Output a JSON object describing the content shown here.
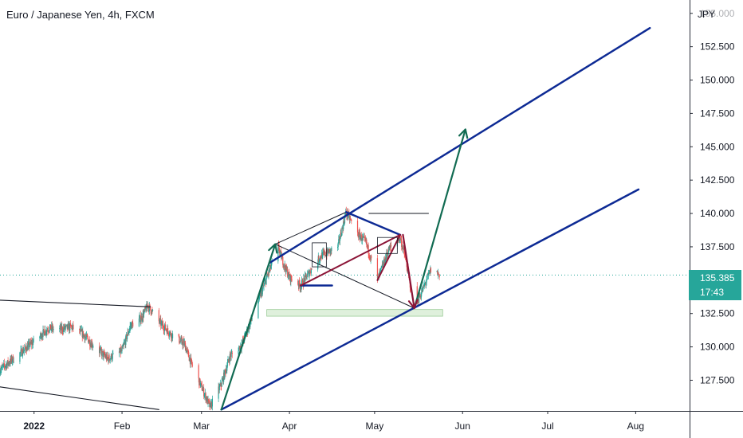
{
  "header": {
    "title": "Euro / Japanese Yen, 4h, FXCM"
  },
  "axis": {
    "unit": "JPY"
  },
  "last_price": {
    "price": "135.385",
    "countdown": "17:43"
  },
  "colors": {
    "channel": "#0d2a94",
    "arrow_green": "#116b52",
    "arrow_red": "#8b1436",
    "black_line": "#131722",
    "price_tag": "#26a69a",
    "zone_fill": "#dff0dc",
    "zone_stroke": "#9ccc98"
  },
  "chart_data": {
    "type": "candlestick",
    "title": "Euro / Japanese Yen, 4h, FXCM",
    "x_ticks": [
      "2022",
      "Feb",
      "Mar",
      "Apr",
      "May",
      "Jun",
      "Jul",
      "Aug"
    ],
    "y_ticks": [
      "155.000",
      "152.500",
      "150.000",
      "147.500",
      "145.000",
      "142.500",
      "140.000",
      "137.500",
      "135.000",
      "132.500",
      "130.000",
      "127.500"
    ],
    "ylim": [
      125.2,
      156.0
    ],
    "xlim": [
      "2021-12-20",
      "2022-08-20"
    ],
    "last_price": 135.385,
    "price_path": [
      [
        "2021-12-20",
        128.3
      ],
      [
        "2021-12-27",
        129.5
      ],
      [
        "2022-01-03",
        130.8
      ],
      [
        "2022-01-06",
        131.4
      ],
      [
        "2022-01-10",
        131.3
      ],
      [
        "2022-01-14",
        131.5
      ],
      [
        "2022-01-18",
        131.0
      ],
      [
        "2022-01-21",
        130.3
      ],
      [
        "2022-01-27",
        129.1
      ],
      [
        "2022-02-01",
        129.7
      ],
      [
        "2022-02-04",
        131.6
      ],
      [
        "2022-02-08",
        132.2
      ],
      [
        "2022-02-10",
        133.1
      ],
      [
        "2022-02-14",
        131.9
      ],
      [
        "2022-02-18",
        131.0
      ],
      [
        "2022-02-23",
        130.2
      ],
      [
        "2022-02-25",
        129.0
      ],
      [
        "2022-03-01",
        127.0
      ],
      [
        "2022-03-04",
        125.5
      ],
      [
        "2022-03-08",
        127.2
      ],
      [
        "2022-03-11",
        129.3
      ],
      [
        "2022-03-15",
        130.1
      ],
      [
        "2022-03-18",
        131.7
      ],
      [
        "2022-03-22",
        134.0
      ],
      [
        "2022-03-28",
        137.5
      ],
      [
        "2022-03-30",
        136.2
      ],
      [
        "2022-04-01",
        135.2
      ],
      [
        "2022-04-05",
        134.6
      ],
      [
        "2022-04-08",
        135.6
      ],
      [
        "2022-04-12",
        136.8
      ],
      [
        "2022-04-18",
        137.5
      ],
      [
        "2022-04-21",
        140.1
      ],
      [
        "2022-04-25",
        138.5
      ],
      [
        "2022-04-28",
        137.8
      ],
      [
        "2022-05-02",
        135.0
      ],
      [
        "2022-05-06",
        137.3
      ],
      [
        "2022-05-10",
        138.2
      ],
      [
        "2022-05-12",
        136.5
      ],
      [
        "2022-05-15",
        132.9
      ],
      [
        "2022-05-18",
        134.3
      ],
      [
        "2022-05-21",
        135.9
      ],
      [
        "2022-05-24",
        135.385
      ]
    ],
    "annotations": {
      "channel_upper": [
        [
          "2022-03-25",
          136.3
        ],
        [
          "2022-08-06",
          153.9
        ]
      ],
      "channel_lower": [
        [
          "2022-03-08",
          125.3
        ],
        [
          "2022-08-02",
          141.8
        ]
      ],
      "upper_pattern_line": [
        [
          "2022-04-21",
          140.1
        ],
        [
          "2022-05-10",
          138.4
        ]
      ],
      "lower_pattern_line": [
        [
          "2022-04-05",
          134.6
        ],
        [
          "2022-04-16",
          134.6
        ]
      ],
      "triangle_upper": [
        [
          "2022-03-27",
          137.7
        ],
        [
          "2022-04-21",
          140.1
        ]
      ],
      "triangle_lower": [
        [
          "2022-03-27",
          137.7
        ],
        [
          "2022-05-15",
          132.9
        ]
      ],
      "triangle_wave_a": [
        [
          "2022-04-05",
          134.6
        ],
        [
          "2022-05-10",
          138.4
        ]
      ],
      "triangle_wave_b": [
        [
          "2022-05-02",
          135.0
        ],
        [
          "2022-05-10",
          138.4
        ]
      ],
      "horizontal_top": [
        [
          "2022-04-29",
          140.0
        ],
        [
          "2022-05-20",
          140.0
        ]
      ],
      "support_zone": {
        "from": "2022-03-24",
        "to": "2022-05-25",
        "low": 132.3,
        "high": 132.8
      },
      "projection_arrow": [
        [
          "2022-05-15",
          132.9
        ],
        [
          "2022-06-02",
          146.3
        ]
      ],
      "impulse_arrow": [
        [
          "2022-03-08",
          125.3
        ],
        [
          "2022-03-27",
          137.7
        ]
      ],
      "drop_arrow": [
        [
          "2022-05-11",
          138.4
        ],
        [
          "2022-05-15",
          132.9
        ]
      ],
      "old_resistance": [
        [
          "2021-12-20",
          133.5
        ],
        [
          "2022-02-11",
          133.0
        ]
      ],
      "old_trend": [
        [
          "2021-12-20",
          127.0
        ],
        [
          "2022-02-14",
          125.3
        ]
      ]
    }
  }
}
